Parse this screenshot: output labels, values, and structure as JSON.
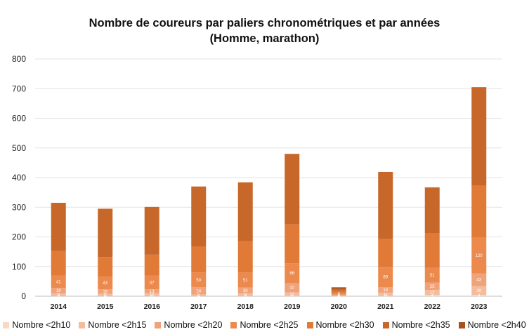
{
  "chart_data": {
    "type": "bar",
    "stacked": true,
    "title": [
      "Nombre de coureurs par paliers chronométriques et par années",
      "(Homme, marathon)"
    ],
    "xlabel": "",
    "ylabel": "",
    "ylim": [
      0,
      800
    ],
    "yticks": [
      0,
      100,
      200,
      300,
      400,
      500,
      600,
      700,
      800
    ],
    "grid": true,
    "legend_position": "bottom",
    "categories": [
      "2014",
      "2015",
      "2016",
      "2017",
      "2018",
      "2019",
      "2020",
      "2021",
      "2022",
      "2023"
    ],
    "series": [
      {
        "name": "Nombre <2h10",
        "color": "#f8d9c4",
        "values": [
          0,
          0,
          0,
          0,
          0,
          1,
          0,
          1,
          4,
          4
        ]
      },
      {
        "name": "Nombre <2h15",
        "color": "#f4bc9b",
        "values": [
          9,
          8,
          10,
          6,
          9,
          12,
          2,
          11,
          17,
          30
        ]
      },
      {
        "name": "Nombre <2h20",
        "color": "#f0a27a",
        "values": [
          19,
          15,
          13,
          24,
          20,
          32,
          3,
          18,
          25,
          43
        ]
      },
      {
        "name": "Nombre <2h25",
        "color": "#ec8a4e",
        "values": [
          41,
          43,
          47,
          50,
          51,
          66,
          5,
          69,
          51,
          120
        ]
      },
      {
        "name": "Nombre <2h30",
        "color": "#e07a36",
        "values": [
          83,
          66,
          70,
          88,
          106,
          131,
          8,
          95,
          116,
          176
        ]
      },
      {
        "name": "Nombre <2h35",
        "color": "#c8672a",
        "values": [
          163,
          163,
          161,
          202,
          198,
          238,
          6,
          225,
          154,
          332
        ]
      },
      {
        "name": "Nombre <2h40",
        "color": "#a5531e",
        "values": [
          0,
          0,
          0,
          0,
          0,
          0,
          6,
          0,
          0,
          0
        ]
      }
    ],
    "totals": [
      316,
      295,
      302,
      370,
      384,
      480,
      30,
      419,
      367,
      705
    ],
    "data_labels": [
      {
        "category": "2014",
        "series": [
          0,
          1,
          2,
          3
        ],
        "values": [
          "0",
          "9",
          "19",
          "41"
        ]
      },
      {
        "category": "2015",
        "series": [
          0,
          1,
          2,
          3
        ],
        "values": [
          "0",
          "8",
          "15",
          "43"
        ]
      },
      {
        "category": "2016",
        "series": [
          0,
          1,
          2,
          3
        ],
        "values": [
          "0",
          "10",
          "13",
          "47"
        ]
      },
      {
        "category": "2017",
        "series": [
          0,
          1,
          2,
          3
        ],
        "values": [
          "0",
          "6",
          "24",
          "50"
        ]
      },
      {
        "category": "2018",
        "series": [
          0,
          1,
          2,
          3
        ],
        "values": [
          "0",
          "9",
          "20",
          "51"
        ]
      },
      {
        "category": "2019",
        "series": [
          0,
          1,
          2,
          3
        ],
        "values": [
          "1",
          "12",
          "32",
          "66"
        ]
      },
      {
        "category": "2020",
        "series": [
          0,
          1,
          2,
          3
        ],
        "values": [
          "0",
          "2",
          "3",
          "5"
        ]
      },
      {
        "category": "2021",
        "series": [
          0,
          1,
          2,
          3
        ],
        "values": [
          "1",
          "11",
          "18",
          "69"
        ]
      },
      {
        "category": "2022",
        "series": [
          0,
          1,
          2,
          3
        ],
        "values": [
          "4",
          "17",
          "25",
          "51"
        ]
      },
      {
        "category": "2023",
        "series": [
          0,
          1,
          2,
          3
        ],
        "values": [
          "4",
          "30",
          "43",
          "120"
        ]
      }
    ]
  }
}
